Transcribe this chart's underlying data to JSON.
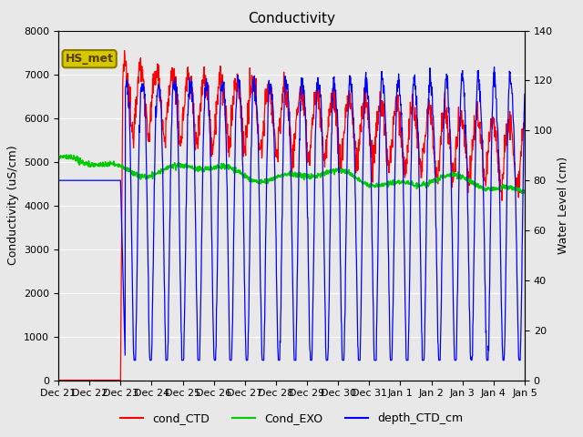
{
  "title": "Conductivity",
  "ylabel_left": "Conductivity (uS/cm)",
  "ylabel_right": "Water Level (cm)",
  "ylim_left": [
    0,
    8000
  ],
  "ylim_right": [
    0,
    140
  ],
  "fig_bg_color": "#e8e8e8",
  "plot_bg_color": "#e8e8e8",
  "annotation_text": "HS_met",
  "annotation_box_facecolor": "#d4c800",
  "annotation_box_edgecolor": "#8b7700",
  "annotation_text_color": "#5a3a00",
  "grid_color": "#ffffff",
  "tick_label_fontsize": 8,
  "title_fontsize": 11,
  "axis_label_fontsize": 9,
  "legend_fontsize": 9,
  "line_lw_red": 0.9,
  "line_lw_green": 1.1,
  "line_lw_blue": 0.9,
  "xtick_labels": [
    "Dec 21",
    "Dec 22",
    "Dec 23",
    "Dec 24",
    "Dec 25",
    "Dec 26",
    "Dec 27",
    "Dec 28",
    "Dec 29",
    "Dec 30",
    "Dec 31",
    "Jan 1",
    "Jan 2",
    "Jan 3",
    "Jan 4",
    "Jan 5"
  ],
  "yticks_left": [
    0,
    1000,
    2000,
    3000,
    4000,
    5000,
    6000,
    7000,
    8000
  ],
  "yticks_right": [
    0,
    20,
    40,
    60,
    80,
    100,
    120,
    140
  ]
}
